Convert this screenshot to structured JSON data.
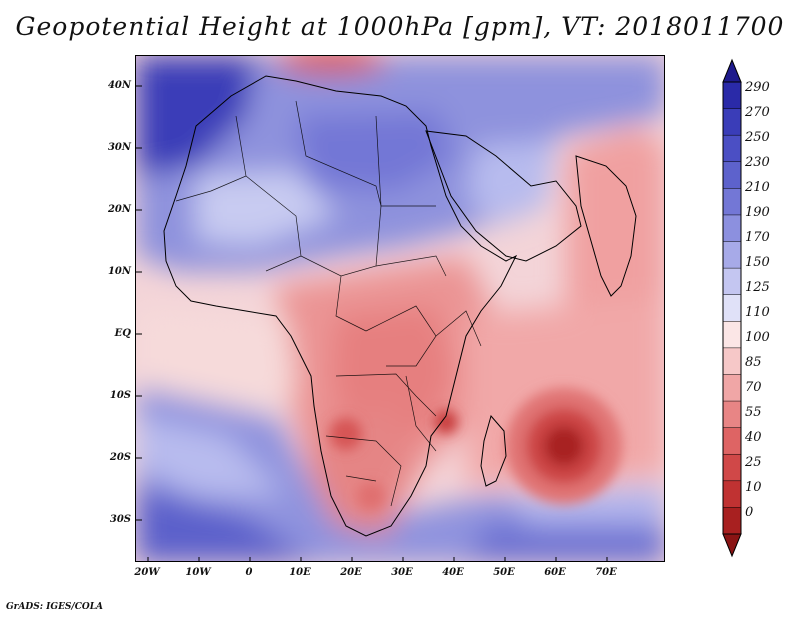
{
  "title": "Geopotential Height at 1000hPa [gpm], VT: 2018011700",
  "credit": "GrADS: IGES/COLA",
  "map": {
    "lat_labels": [
      "40N",
      "30N",
      "20N",
      "10N",
      "EQ",
      "10S",
      "20S",
      "30S"
    ],
    "lon_labels": [
      "20W",
      "10W",
      "0",
      "10E",
      "20E",
      "30E",
      "40E",
      "50E",
      "60E",
      "70E"
    ],
    "domain": {
      "lon_range": [
        -22,
        80
      ],
      "lat_range": [
        -37,
        45
      ]
    }
  },
  "colorbar": {
    "levels": [
      "290",
      "270",
      "250",
      "230",
      "210",
      "190",
      "170",
      "150",
      "125",
      "110",
      "100",
      "85",
      "70",
      "55",
      "40",
      "25",
      "10",
      "0"
    ],
    "colors": [
      "#1e1a8c",
      "#2a2aa8",
      "#3a3db8",
      "#4b4fc4",
      "#5d62cc",
      "#7377d6",
      "#8c90df",
      "#a7aae8",
      "#c4c6f1",
      "#e0e1f8",
      "#fbe6e6",
      "#f6c8c8",
      "#f0a6a6",
      "#e88585",
      "#de6464",
      "#d04848",
      "#c03232",
      "#a82020",
      "#8a1414"
    ]
  }
}
